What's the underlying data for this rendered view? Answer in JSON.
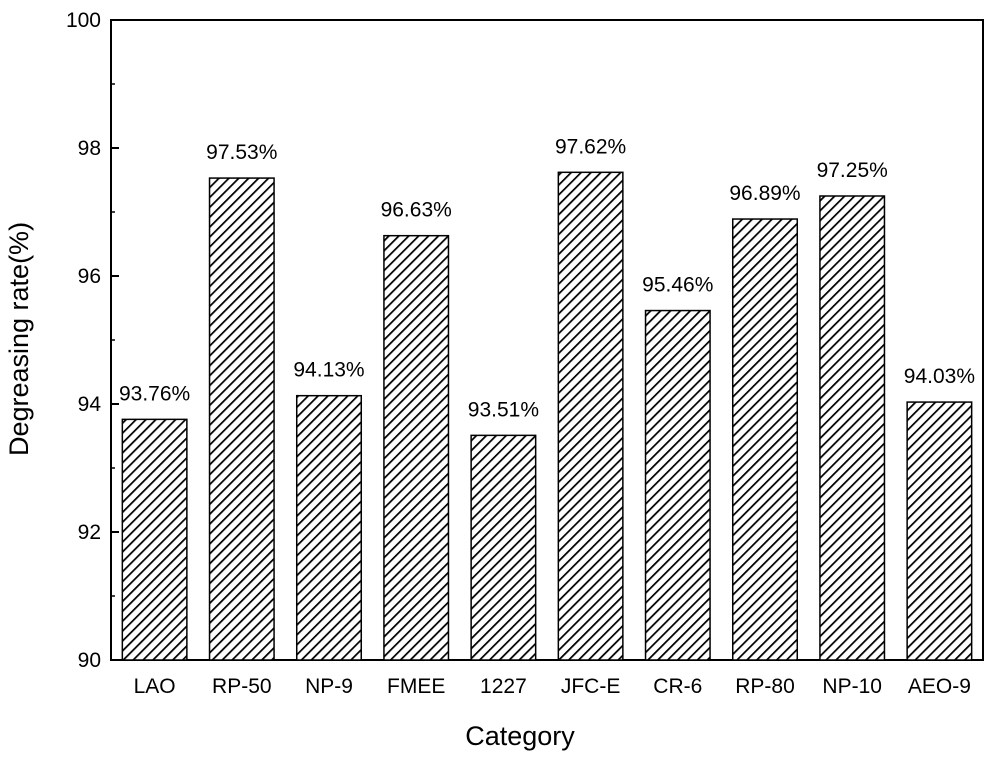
{
  "chart_data": {
    "type": "bar",
    "categories": [
      "LAO",
      "RP-50",
      "NP-9",
      "FMEE",
      "1227",
      "JFC-E",
      "CR-6",
      "RP-80",
      "NP-10",
      "AEO-9"
    ],
    "values": [
      93.76,
      97.53,
      94.13,
      96.63,
      93.51,
      97.62,
      95.46,
      96.89,
      97.25,
      94.03
    ],
    "data_labels": [
      "93.76%",
      "97.53%",
      "94.13%",
      "96.63%",
      "93.51%",
      "97.62%",
      "95.46%",
      "96.89%",
      "97.25%",
      "94.03%"
    ],
    "xlabel": "Category",
    "ylabel": "Degreasing rate(%)",
    "ylim": [
      90,
      100
    ],
    "yticks": [
      90,
      92,
      94,
      96,
      98,
      100
    ],
    "ytick_labels": [
      "90",
      "92",
      "94",
      "96",
      "98",
      "100"
    ],
    "grid": false,
    "bar_fill": "hatched diagonal",
    "colors": {
      "bar_stroke": "#000000",
      "hatch": "#000000",
      "background": "#ffffff"
    }
  }
}
